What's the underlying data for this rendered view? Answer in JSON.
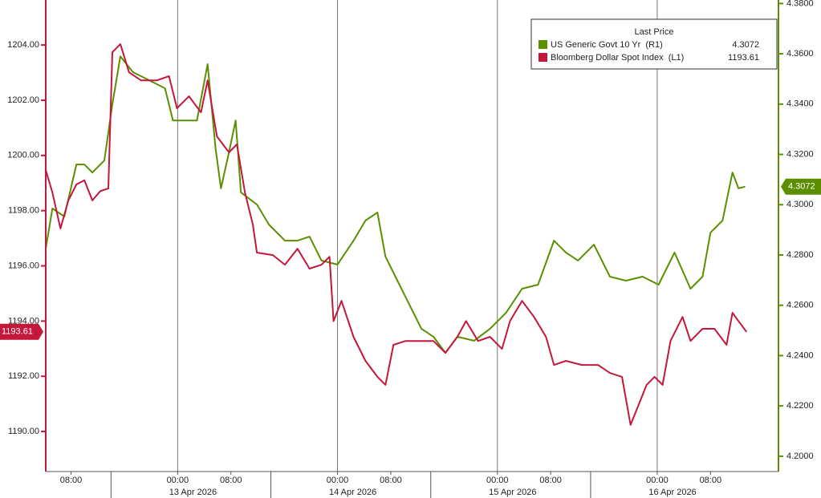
{
  "chart_data": {
    "type": "line",
    "legend_title": "Last Price",
    "xlim": [
      -19.8,
      90.2
    ],
    "xticks": [
      {
        "value": -16,
        "label": "08:00"
      },
      {
        "value": 0,
        "label": "00:00"
      },
      {
        "value": 8,
        "label": "08:00"
      },
      {
        "value": 24,
        "label": "00:00"
      },
      {
        "value": 32,
        "label": "08:00"
      },
      {
        "value": 48,
        "label": "00:00"
      },
      {
        "value": 56,
        "label": "08:00"
      },
      {
        "value": 72,
        "label": "00:00"
      },
      {
        "value": 80,
        "label": "08:00"
      }
    ],
    "date_ticks": [
      {
        "value": 0,
        "label": "13 Apr 2026"
      },
      {
        "value": 24,
        "label": "14 Apr 2026"
      },
      {
        "value": 48,
        "label": "15 Apr 2026"
      },
      {
        "value": 72,
        "label": "16 Apr 2026"
      }
    ],
    "ylim": [
      1188.55,
      1205.63
    ],
    "yticks": [
      {
        "value": 1190,
        "label": "1190.00"
      },
      {
        "value": 1192,
        "label": "1192.00"
      },
      {
        "value": 1194,
        "label": "1194.00"
      },
      {
        "value": 1196,
        "label": "1196.00"
      },
      {
        "value": 1198,
        "label": "1198.00"
      },
      {
        "value": 1200,
        "label": "1200.00"
      },
      {
        "value": 1202,
        "label": "1202.00"
      },
      {
        "value": 1204,
        "label": "1204.00"
      }
    ],
    "y2lim": [
      4.1939,
      4.3814
    ],
    "y2ticks": [
      {
        "value": 4.2,
        "label": "4.2000"
      },
      {
        "value": 4.22,
        "label": "4.2200"
      },
      {
        "value": 4.24,
        "label": "4.2400"
      },
      {
        "value": 4.26,
        "label": "4.2600"
      },
      {
        "value": 4.28,
        "label": "4.2800"
      },
      {
        "value": 4.3,
        "label": "4.3000"
      },
      {
        "value": 4.32,
        "label": "4.3200"
      },
      {
        "value": 4.34,
        "label": "4.3400"
      },
      {
        "value": 4.36,
        "label": "4.3600"
      },
      {
        "value": 4.38,
        "label": "4.3800"
      }
    ],
    "series": [
      {
        "name": "US Generic Govt 10 Yr  (R1)",
        "color": "#5b8f00",
        "axis": "y2",
        "last": 4.3072,
        "x": [
          -19.8,
          -18.8,
          -17.0,
          -15.2,
          -14.0,
          -12.8,
          -11.0,
          -9.8,
          -8.6,
          -6.7,
          -4.3,
          -1.9,
          -0.7,
          1.1,
          2.9,
          4.5,
          5.7,
          6.5,
          7.7,
          8.7,
          9.5,
          11.9,
          13.7,
          16.1,
          18.0,
          19.8,
          21.6,
          24.0,
          26.4,
          28.2,
          30.0,
          31.2,
          33.0,
          34.8,
          36.6,
          38.4,
          40.2,
          42.0,
          44.5,
          46.9,
          49.3,
          51.7,
          54.1,
          56.5,
          58.3,
          60.1,
          62.5,
          64.9,
          67.3,
          69.8,
          72.2,
          74.6,
          77.0,
          78.8,
          80.0,
          81.8,
          83.3,
          84.2,
          85.2
        ],
        "values": [
          4.2825,
          4.2985,
          4.2953,
          4.316,
          4.316,
          4.3128,
          4.3176,
          4.3399,
          4.359,
          4.3527,
          4.3495,
          4.3463,
          4.3335,
          4.3335,
          4.3335,
          4.3559,
          4.3224,
          4.3065,
          4.3208,
          4.3335,
          4.3049,
          4.3001,
          4.2921,
          4.2857,
          4.2857,
          4.2873,
          4.2778,
          4.2762,
          4.2857,
          4.2937,
          4.2969,
          4.2794,
          4.2698,
          4.2602,
          4.2507,
          4.2475,
          4.2411,
          4.2475,
          4.2459,
          4.2507,
          4.257,
          4.2666,
          4.2682,
          4.2857,
          4.281,
          4.2778,
          4.2841,
          4.2714,
          4.2698,
          4.2714,
          4.2682,
          4.281,
          4.2666,
          4.2714,
          4.2889,
          4.2937,
          4.3128,
          4.3065,
          4.3072
        ]
      },
      {
        "name": "Bloomberg Dollar Spot Index  (L1)",
        "color": "#c4173c",
        "axis": "y",
        "last": 1193.61,
        "x": [
          -19.8,
          -18.8,
          -17.6,
          -16.4,
          -15.2,
          -14.0,
          -12.8,
          -11.6,
          -10.4,
          -9.8,
          -8.6,
          -7.3,
          -5.5,
          -3.1,
          -1.3,
          -0.1,
          1.7,
          3.5,
          4.5,
          5.9,
          7.7,
          8.9,
          10.1,
          11.3,
          11.9,
          14.3,
          16.1,
          18.0,
          19.8,
          21.6,
          22.8,
          23.4,
          24.6,
          26.4,
          28.2,
          30.0,
          31.2,
          32.4,
          34.2,
          36.0,
          38.4,
          40.2,
          42.0,
          43.3,
          45.1,
          46.9,
          48.7,
          49.9,
          51.7,
          53.5,
          55.3,
          56.5,
          58.3,
          60.7,
          63.1,
          64.9,
          66.7,
          68.0,
          69.2,
          70.4,
          71.6,
          72.8,
          74.0,
          75.8,
          77.0,
          78.8,
          80.6,
          82.4,
          83.3,
          84.2,
          85.4
        ],
        "values": [
          1199.47,
          1198.66,
          1197.35,
          1198.37,
          1198.95,
          1199.1,
          1198.37,
          1198.71,
          1198.8,
          1203.74,
          1204.03,
          1203.01,
          1202.72,
          1202.72,
          1202.87,
          1201.71,
          1202.14,
          1201.56,
          1202.72,
          1200.69,
          1200.11,
          1200.4,
          1198.66,
          1197.49,
          1196.48,
          1196.39,
          1196.04,
          1196.62,
          1195.9,
          1196.04,
          1196.33,
          1194.0,
          1194.73,
          1193.43,
          1192.56,
          1191.98,
          1191.69,
          1193.14,
          1193.28,
          1193.28,
          1193.28,
          1192.85,
          1193.43,
          1194.0,
          1193.28,
          1193.43,
          1192.99,
          1194.0,
          1194.73,
          1194.15,
          1193.43,
          1192.41,
          1192.56,
          1192.41,
          1192.41,
          1192.12,
          1191.98,
          1190.24,
          1190.96,
          1191.69,
          1191.98,
          1191.69,
          1193.28,
          1194.15,
          1193.28,
          1193.72,
          1193.72,
          1193.14,
          1194.3,
          1194.0,
          1193.61
        ]
      }
    ]
  }
}
